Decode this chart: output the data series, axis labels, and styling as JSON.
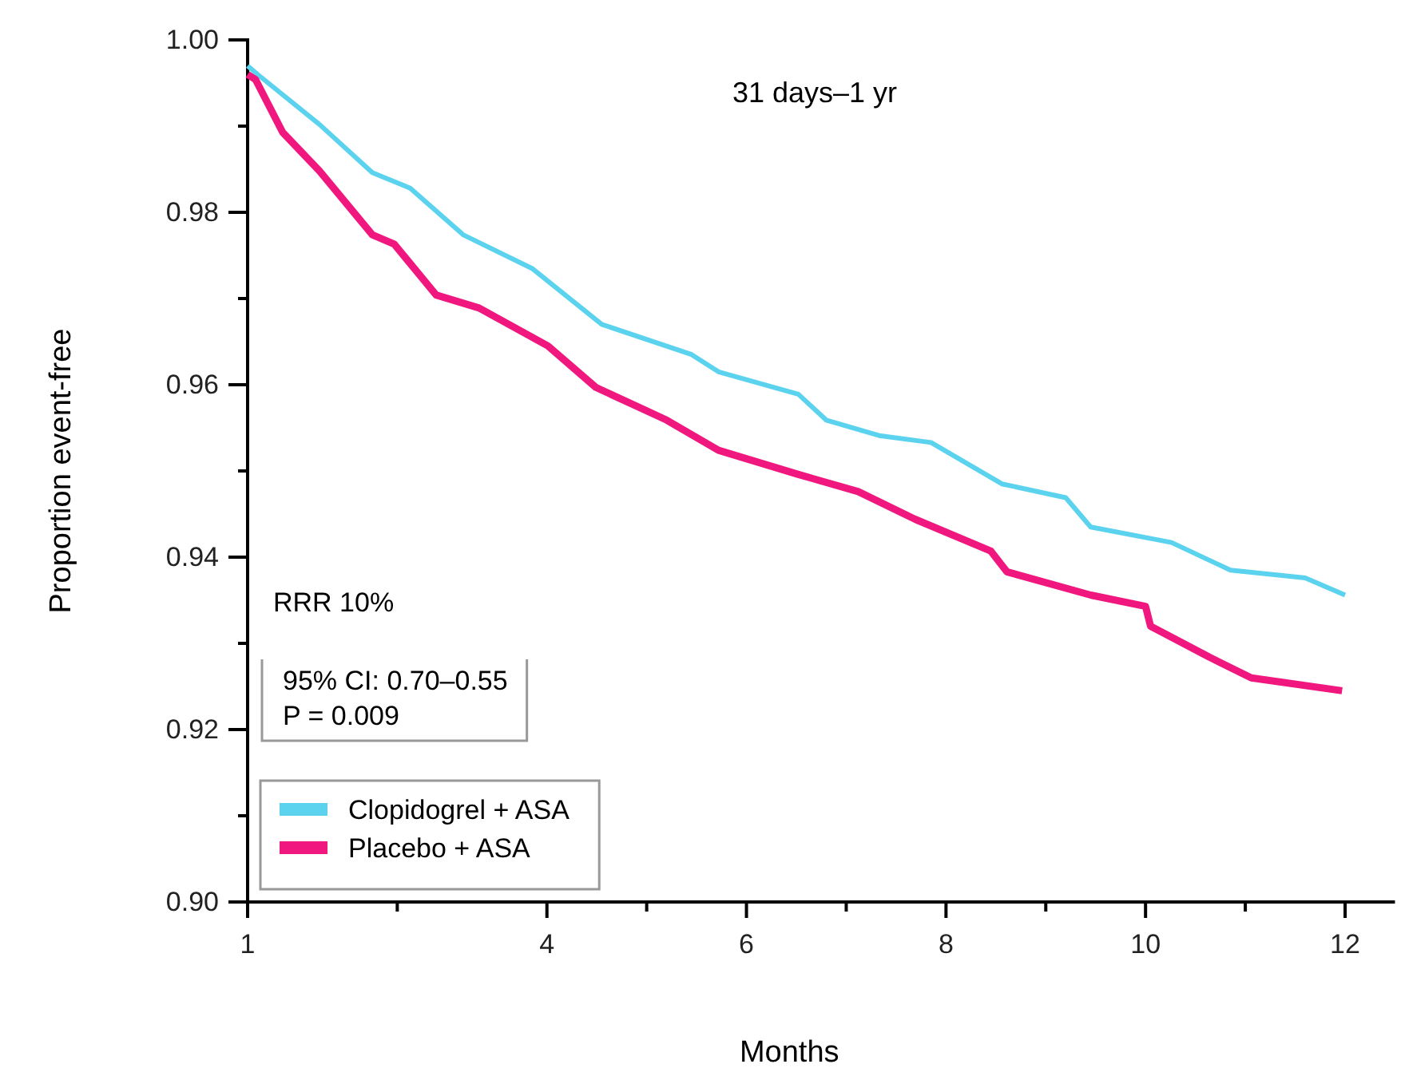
{
  "chart_data": {
    "type": "line",
    "xlabel": "Months",
    "ylabel": "Proportion event-free",
    "xlim": [
      1,
      12.5
    ],
    "xticks": [
      1,
      {
        "value": 2.5,
        "label": null
      },
      4,
      {
        "value": 5,
        "label": null
      },
      6,
      {
        "value": 7,
        "label": null
      },
      8,
      {
        "value": 9,
        "label": null
      },
      10,
      {
        "value": 11,
        "label": null
      },
      12
    ],
    "ylim": [
      0.9,
      1.0
    ],
    "yticks": [
      {
        "value": 0.9,
        "label": "0.90"
      },
      {
        "value": 0.91,
        "label": null
      },
      {
        "value": 0.92,
        "label": "0.92"
      },
      {
        "value": 0.93,
        "label": null
      },
      {
        "value": 0.94,
        "label": "0.94"
      },
      {
        "value": 0.95,
        "label": null
      },
      {
        "value": 0.96,
        "label": "0.96"
      },
      {
        "value": 0.97,
        "label": null
      },
      {
        "value": 0.98,
        "label": "0.98"
      },
      {
        "value": 0.99,
        "label": null
      },
      {
        "value": 1.0,
        "label": "1.00"
      }
    ],
    "grid": false,
    "legend": "bottom left",
    "marker": "none",
    "line_style": "solid",
    "annotations": [
      "31 days–1 yr",
      "RRR 10%",
      "95% CI: 0.70–0.55\nP = 0.009"
    ],
    "series": [
      {
        "name": "Clopidogrel + ASA",
        "color": "#5bd3ee",
        "x": [
          1.0,
          1.11,
          1.72,
          2.25,
          2.63,
          3.16,
          3.85,
          4.55,
          5.45,
          5.72,
          6.52,
          6.8,
          7.33,
          7.85,
          8.56,
          9.2,
          9.45,
          10.26,
          10.85,
          11.6,
          12.0
        ],
        "values": [
          0.997,
          0.9959,
          0.9902,
          0.9846,
          0.9828,
          0.9774,
          0.9735,
          0.967,
          0.9635,
          0.9615,
          0.9589,
          0.9559,
          0.9541,
          0.9533,
          0.9485,
          0.9469,
          0.9435,
          0.9417,
          0.9385,
          0.9376,
          0.9356
        ]
      },
      {
        "name": "Placebo + ASA",
        "color": "#f0177f",
        "x": [
          1.0,
          1.08,
          1.35,
          1.72,
          2.25,
          2.47,
          2.89,
          3.32,
          4.01,
          4.49,
          5.2,
          5.72,
          6.52,
          7.12,
          7.69,
          8.45,
          8.61,
          9.45,
          10.0,
          10.05,
          10.64,
          11.06,
          11.97
        ],
        "values": [
          0.996,
          0.9954,
          0.9893,
          0.9848,
          0.9774,
          0.9763,
          0.9704,
          0.9689,
          0.9645,
          0.9597,
          0.9559,
          0.9524,
          0.9496,
          0.9476,
          0.9444,
          0.9407,
          0.9383,
          0.9356,
          0.9343,
          0.932,
          0.9284,
          0.926,
          0.9245
        ]
      }
    ]
  }
}
